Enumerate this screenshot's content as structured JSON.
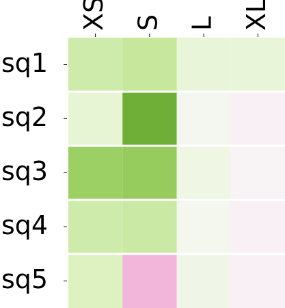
{
  "chart_data": {
    "type": "heatmap",
    "columns": [
      "XS",
      "S",
      "L",
      "XL"
    ],
    "rows": [
      "sq1",
      "sq2",
      "sq3",
      "sq4",
      "sq5"
    ],
    "values": [
      [
        0.3,
        0.34,
        0.16,
        0.16
      ],
      [
        0.18,
        0.66,
        0.04,
        -0.06
      ],
      [
        0.5,
        0.52,
        0.1,
        -0.03
      ],
      [
        0.3,
        0.32,
        0.05,
        -0.06
      ],
      [
        0.24,
        -0.4,
        0.08,
        -0.06
      ]
    ],
    "colormap": "PiYG",
    "vlim": [
      -1,
      1
    ]
  }
}
